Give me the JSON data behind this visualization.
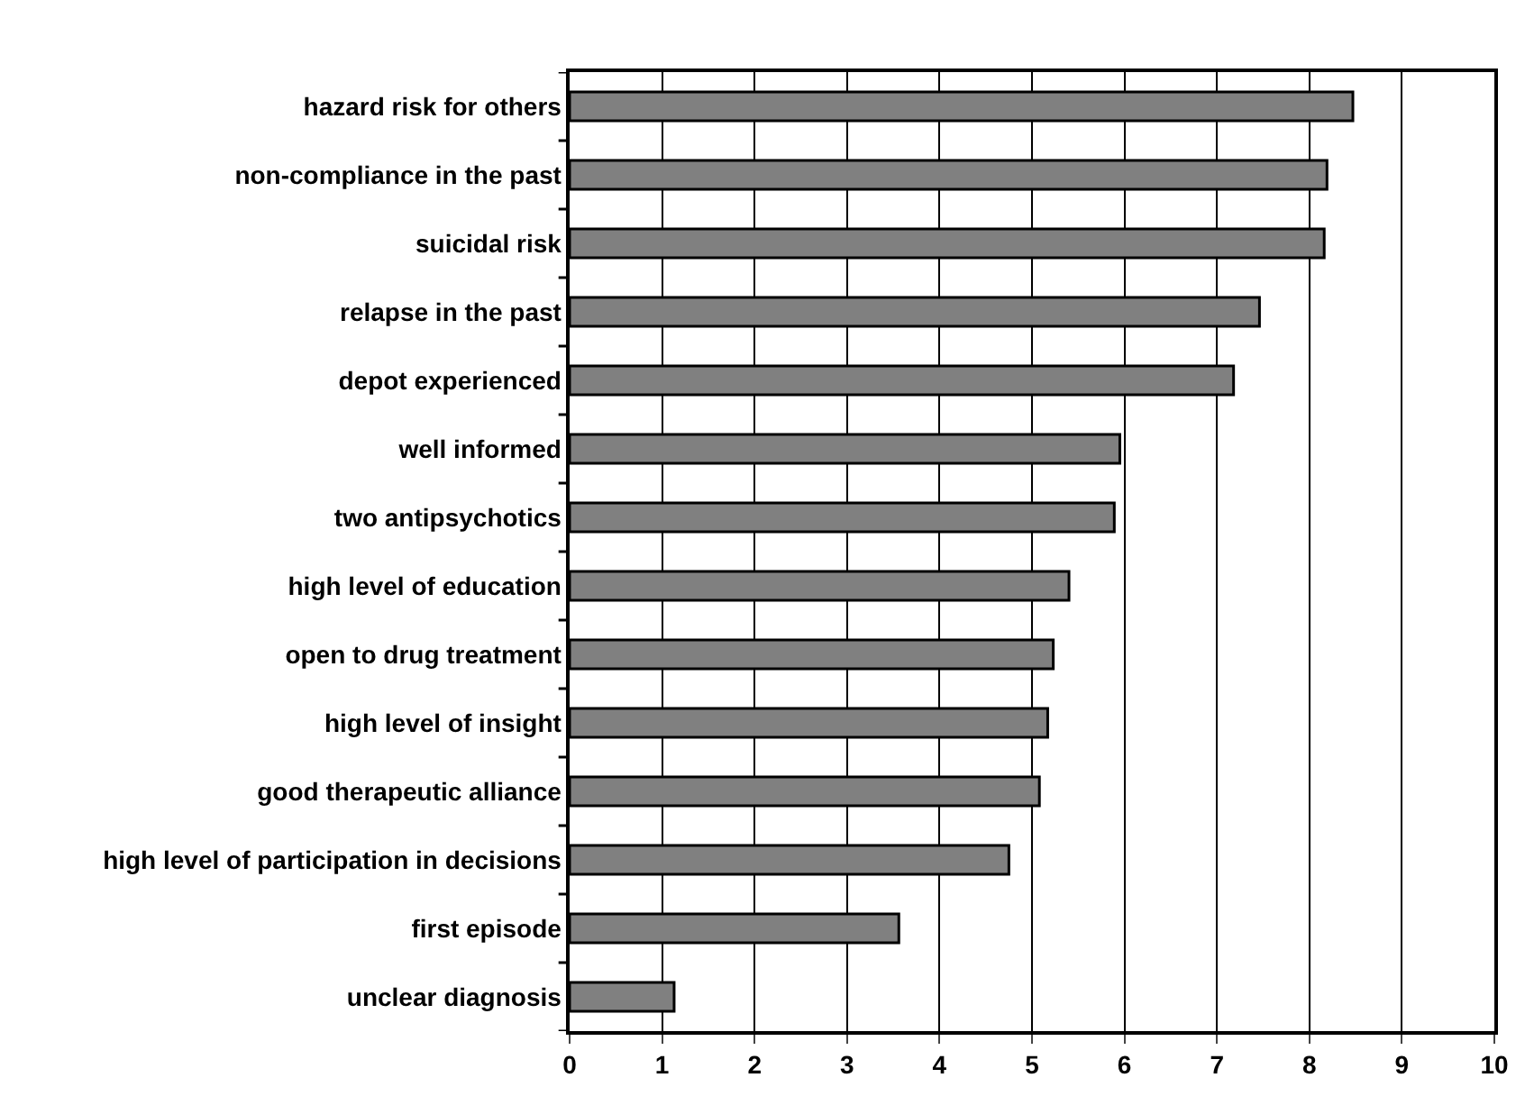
{
  "chart_data": {
    "type": "bar",
    "orientation": "horizontal",
    "categories": [
      "hazard risk for others",
      "non-compliance in the past",
      "suicidal risk",
      "relapse in the past",
      "depot experienced",
      "well informed",
      "two antipsychotics",
      "high level of education",
      "open to drug treatment",
      "high level of insight",
      "good therapeutic alliance",
      "high level of participation in decisions",
      "first episode",
      "unclear diagnosis"
    ],
    "values": [
      8.47,
      8.19,
      8.16,
      7.46,
      7.18,
      5.95,
      5.89,
      5.4,
      5.23,
      5.17,
      5.08,
      4.75,
      3.56,
      1.13
    ],
    "color": "#808080",
    "xlim": [
      0,
      10
    ],
    "xticks": [
      0,
      1,
      2,
      3,
      4,
      5,
      6,
      7,
      8,
      9,
      10
    ],
    "grid": "x",
    "legend": false
  }
}
